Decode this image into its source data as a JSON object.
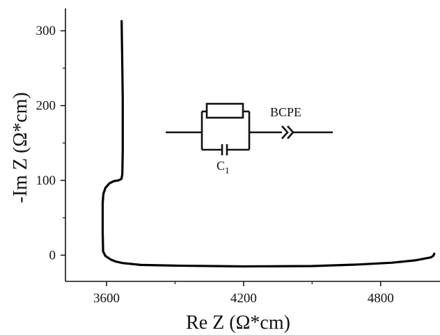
{
  "chart_data": {
    "type": "line",
    "title": "",
    "xlabel": "Re Z (Ω*cm)",
    "ylabel": "-Im Z (Ω*cm)",
    "xlim": [
      3420,
      5060
    ],
    "ylim": [
      -35,
      330
    ],
    "x_ticks": [
      {
        "value": 3600,
        "label": "3600"
      },
      {
        "value": 4200,
        "label": "4200"
      },
      {
        "value": 4800,
        "label": "4800"
      }
    ],
    "y_ticks": [
      {
        "value": 0,
        "label": "0"
      },
      {
        "value": 100,
        "label": "100"
      },
      {
        "value": 200,
        "label": "200"
      },
      {
        "value": 300,
        "label": "300"
      }
    ],
    "grid": false,
    "series": [
      {
        "color": "#000000",
        "x": [
          5035,
          5030,
          5020,
          4950,
          4850,
          4700,
          4500,
          4200,
          3900,
          3750,
          3670,
          3640,
          3620,
          3595,
          3585,
          3583,
          3583,
          3586,
          3595,
          3612,
          3632,
          3652,
          3665,
          3669,
          3671,
          3671,
          3668,
          3666
        ],
        "y": [
          2,
          -1,
          -3,
          -7,
          -10,
          -12.5,
          -14.5,
          -15,
          -14,
          -13,
          -10.5,
          -8.5,
          -6,
          -1,
          5,
          30,
          70,
          82,
          90,
          96,
          99,
          100,
          102,
          108,
          140,
          210,
          270,
          313
        ]
      }
    ],
    "inset": {
      "type": "equivalent-circuit",
      "labels": {
        "capacitor": "C",
        "capacitor_subscript": "1",
        "cpe": "BCPE"
      }
    }
  }
}
